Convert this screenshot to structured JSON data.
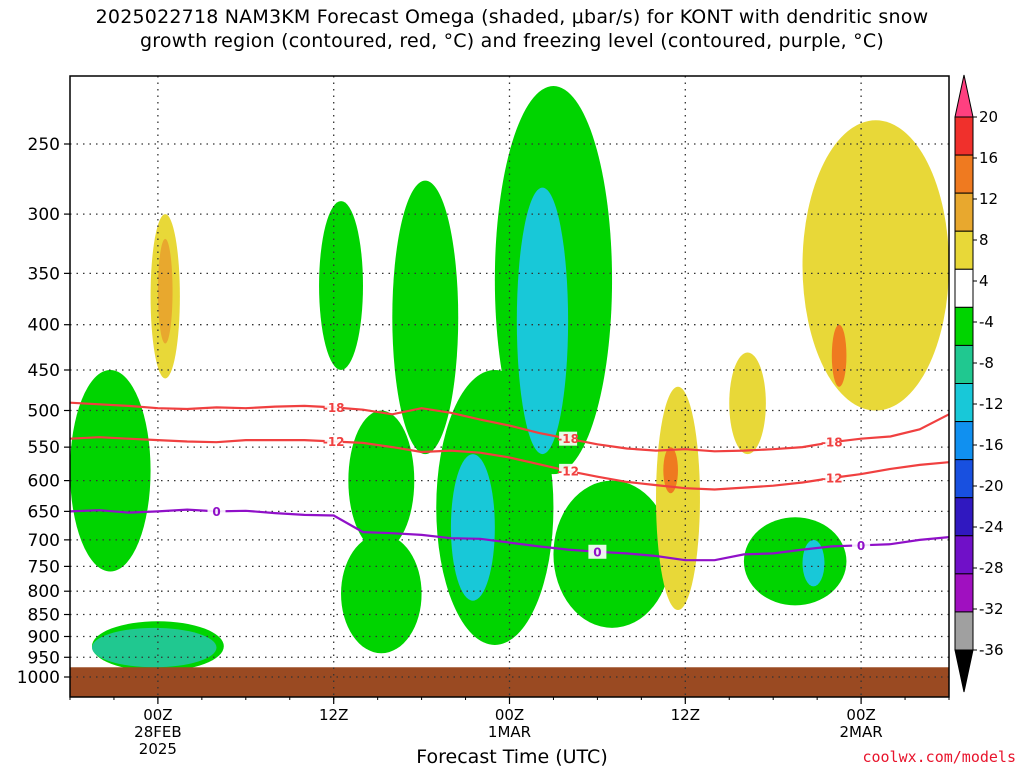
{
  "title": {
    "line1": "2025022718 NAM3KM Forecast Omega (shaded, μbar/s) for KONT with dendritic snow",
    "line2": "growth region (contoured, red, °C) and freezing level (contoured, purple, °C)"
  },
  "x_axis_title": "Forecast Time (UTC)",
  "credit": "coolwx.com/models",
  "chart_data": {
    "type": "heatmap",
    "title": "2025022718 NAM3KM Forecast Omega (shaded, μbar/s) for KONT with dendritic snow growth region (contoured, red, °C) and freezing level (contoured, purple, °C)",
    "xlabel": "Forecast Time (UTC)",
    "ylabel": "",
    "y_scale": "log (pressure, hPa)",
    "y_ticks": [
      250,
      300,
      350,
      400,
      450,
      500,
      550,
      600,
      650,
      700,
      750,
      800,
      850,
      900,
      950,
      1000
    ],
    "x_ticks": [
      {
        "hour": 6,
        "label": "00Z",
        "date": "28FEB",
        "year": "2025"
      },
      {
        "hour": 18,
        "label": "12Z",
        "date": "",
        "year": ""
      },
      {
        "hour": 30,
        "label": "00Z",
        "date": "1MAR",
        "year": ""
      },
      {
        "hour": 42,
        "label": "12Z",
        "date": "",
        "year": ""
      },
      {
        "hour": 54,
        "label": "00Z",
        "date": "2MAR",
        "year": ""
      }
    ],
    "x_range_hours": [
      0,
      60
    ],
    "grid": true,
    "colorbar": {
      "labels": [
        "20",
        "16",
        "12",
        "8",
        "4",
        "-4",
        "-8",
        "-12",
        "-16",
        "-20",
        "-24",
        "-28",
        "-32",
        "-36"
      ],
      "colors": [
        "#ff4080",
        "#f0302c",
        "#ef7a20",
        "#e8a82e",
        "#e8d838",
        "#ffffff",
        "#00d400",
        "#20c890",
        "#18c8d8",
        "#1090f0",
        "#1850e0",
        "#3018c0",
        "#7010c8",
        "#a010c0",
        "#a0a0a0",
        "#000000"
      ]
    },
    "contours": [
      {
        "name": "-18",
        "color": "#f04040",
        "points": [
          [
            0,
            490
          ],
          [
            2,
            492
          ],
          [
            4,
            494
          ],
          [
            6,
            497
          ],
          [
            8,
            498
          ],
          [
            10,
            496
          ],
          [
            12,
            497
          ],
          [
            14,
            495
          ],
          [
            16,
            494
          ],
          [
            18,
            496
          ],
          [
            20,
            499
          ],
          [
            22,
            505
          ],
          [
            24,
            497
          ],
          [
            26,
            503
          ],
          [
            28,
            512
          ],
          [
            30,
            520
          ],
          [
            32,
            530
          ],
          [
            34,
            538
          ],
          [
            36,
            546
          ],
          [
            38,
            552
          ],
          [
            40,
            555
          ],
          [
            42,
            553
          ],
          [
            44,
            556
          ],
          [
            46,
            555
          ],
          [
            48,
            553
          ],
          [
            50,
            550
          ],
          [
            52,
            543
          ],
          [
            54,
            538
          ],
          [
            56,
            535
          ],
          [
            58,
            525
          ],
          [
            60,
            505
          ]
        ]
      },
      {
        "name": "-12",
        "color": "#f04040",
        "points": [
          [
            0,
            538
          ],
          [
            2,
            536
          ],
          [
            4,
            538
          ],
          [
            6,
            540
          ],
          [
            8,
            542
          ],
          [
            10,
            543
          ],
          [
            12,
            540
          ],
          [
            14,
            540
          ],
          [
            16,
            540
          ],
          [
            18,
            542
          ],
          [
            20,
            544
          ],
          [
            22,
            550
          ],
          [
            24,
            557
          ],
          [
            26,
            555
          ],
          [
            28,
            558
          ],
          [
            30,
            565
          ],
          [
            32,
            575
          ],
          [
            34,
            585
          ],
          [
            36,
            594
          ],
          [
            38,
            602
          ],
          [
            40,
            607
          ],
          [
            42,
            612
          ],
          [
            44,
            614
          ],
          [
            46,
            611
          ],
          [
            48,
            608
          ],
          [
            50,
            603
          ],
          [
            52,
            596
          ],
          [
            54,
            590
          ],
          [
            56,
            582
          ],
          [
            58,
            576
          ],
          [
            60,
            572
          ]
        ]
      },
      {
        "name": "0",
        "color": "#9010c8",
        "points": [
          [
            0,
            650
          ],
          [
            2,
            648
          ],
          [
            4,
            652
          ],
          [
            6,
            650
          ],
          [
            8,
            647
          ],
          [
            10,
            650
          ],
          [
            12,
            649
          ],
          [
            14,
            653
          ],
          [
            16,
            656
          ],
          [
            18,
            657
          ],
          [
            20,
            686
          ],
          [
            22,
            688
          ],
          [
            24,
            691
          ],
          [
            26,
            697
          ],
          [
            28,
            698
          ],
          [
            30,
            705
          ],
          [
            32,
            712
          ],
          [
            34,
            718
          ],
          [
            36,
            722
          ],
          [
            38,
            725
          ],
          [
            40,
            730
          ],
          [
            42,
            738
          ],
          [
            44,
            738
          ],
          [
            46,
            727
          ],
          [
            48,
            725
          ],
          [
            50,
            718
          ],
          [
            52,
            712
          ],
          [
            54,
            710
          ],
          [
            56,
            708
          ],
          [
            58,
            700
          ],
          [
            60,
            695
          ]
        ]
      }
    ],
    "omega_regions": [
      {
        "level": "-4 to -8",
        "color": "#00d400",
        "t": [
          0,
          5.5
        ],
        "p": [
          450,
          760
        ]
      },
      {
        "level": "-4 to -8",
        "color": "#00d400",
        "t": [
          1.5,
          10.5
        ],
        "p": [
          865,
          985
        ]
      },
      {
        "level": "-8 to -12",
        "color": "#20c890",
        "t": [
          1.5,
          10
        ],
        "p": [
          880,
          975
        ]
      },
      {
        "level": "-4 to -8",
        "color": "#00d400",
        "t": [
          17,
          20
        ],
        "p": [
          290,
          450
        ]
      },
      {
        "level": "-4 to -8",
        "color": "#00d400",
        "t": [
          22,
          26.5
        ],
        "p": [
          275,
          560
        ]
      },
      {
        "level": "-4 to -8",
        "color": "#00d400",
        "t": [
          19,
          23.5
        ],
        "p": [
          500,
          720
        ]
      },
      {
        "level": "-4 to -8",
        "color": "#00d400",
        "t": [
          18.5,
          24
        ],
        "p": [
          690,
          940
        ]
      },
      {
        "level": "-4 to -8",
        "color": "#00d400",
        "t": [
          25,
          33
        ],
        "p": [
          450,
          920
        ]
      },
      {
        "level": "-12 to -16",
        "color": "#18c8d8",
        "t": [
          26,
          29
        ],
        "p": [
          560,
          820
        ]
      },
      {
        "level": "-4 to -8",
        "color": "#00d400",
        "t": [
          29,
          37
        ],
        "p": [
          215,
          590
        ]
      },
      {
        "level": "-12 to -16",
        "color": "#18c8d8",
        "t": [
          30.5,
          34
        ],
        "p": [
          280,
          560
        ]
      },
      {
        "level": "-4 to -8",
        "color": "#00d400",
        "t": [
          33,
          41
        ],
        "p": [
          600,
          880
        ]
      },
      {
        "level": "-4 to -8",
        "color": "#00d400",
        "t": [
          46,
          53
        ],
        "p": [
          660,
          830
        ]
      },
      {
        "level": "-12 to -16",
        "color": "#18c8d8",
        "t": [
          50,
          51.5
        ],
        "p": [
          700,
          790
        ]
      },
      {
        "level": "4 to 8",
        "color": "#e8d838",
        "t": [
          5.5,
          7.5
        ],
        "p": [
          300,
          460
        ]
      },
      {
        "level": "8 to 12",
        "color": "#e8a82e",
        "t": [
          6,
          7
        ],
        "p": [
          320,
          420
        ]
      },
      {
        "level": "4 to 8",
        "color": "#e8d838",
        "t": [
          40,
          43
        ],
        "p": [
          470,
          840
        ]
      },
      {
        "level": "12 to 16",
        "color": "#ef7a20",
        "t": [
          40.5,
          41.5
        ],
        "p": [
          550,
          620
        ]
      },
      {
        "level": "4 to 8",
        "color": "#e8d838",
        "t": [
          45,
          47.5
        ],
        "p": [
          430,
          560
        ]
      },
      {
        "level": "4 to 8",
        "color": "#e8d838",
        "t": [
          50,
          60
        ],
        "p": [
          235,
          500
        ]
      },
      {
        "level": "12 to 16",
        "color": "#ef7a20",
        "t": [
          52,
          53
        ],
        "p": [
          400,
          470
        ]
      }
    ],
    "surface": {
      "label": "ground",
      "color": "#9a4a22",
      "p": [
        975,
        1030
      ]
    }
  }
}
